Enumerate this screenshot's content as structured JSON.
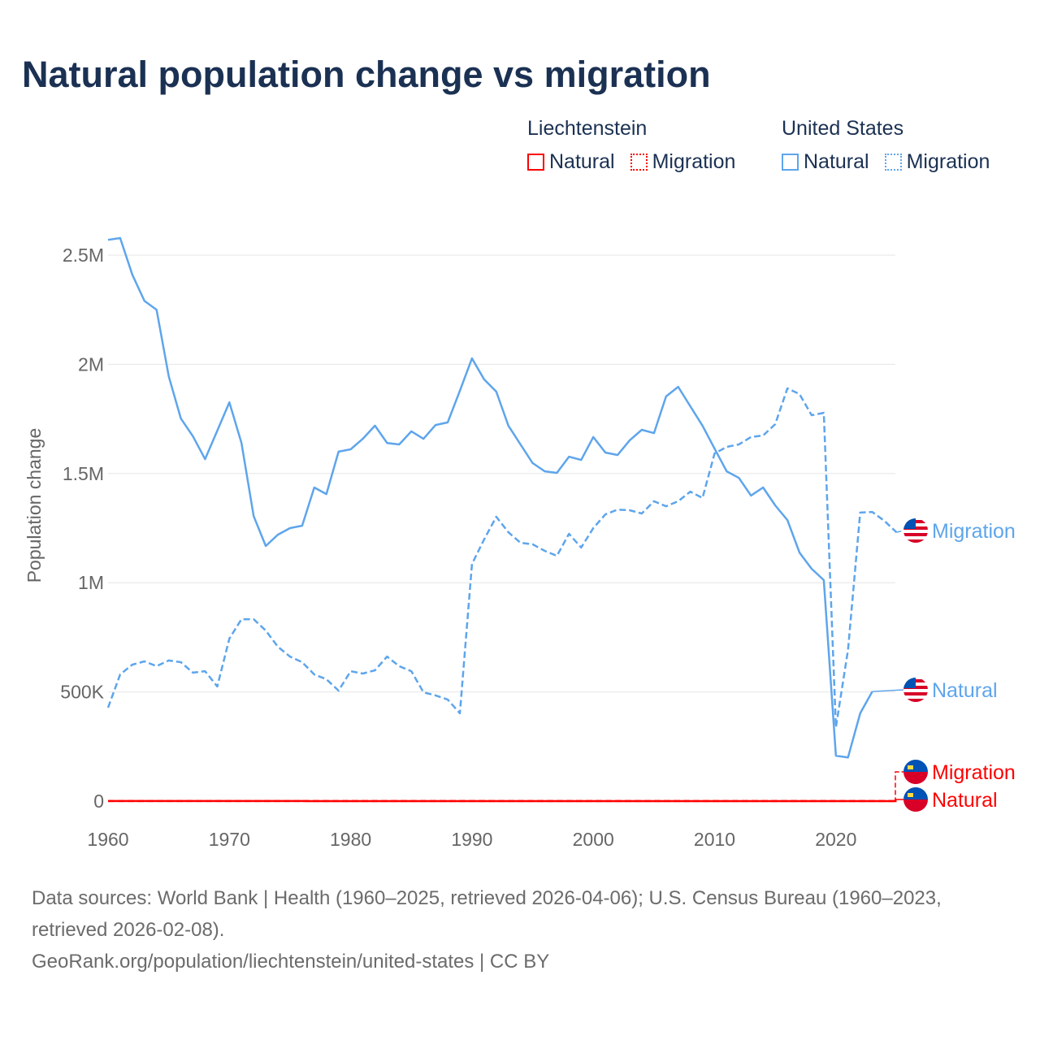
{
  "chart_data": {
    "type": "line",
    "title": "Natural population change vs migration",
    "xlabel": "",
    "ylabel": "Population change",
    "xlim": [
      1960,
      2025
    ],
    "ylim": [
      0,
      2500000
    ],
    "x_ticks": [
      "1960",
      "1970",
      "1980",
      "1990",
      "2000",
      "2010",
      "2020"
    ],
    "y_ticks": [
      {
        "value": 0,
        "label": "0"
      },
      {
        "value": 500000,
        "label": "500K"
      },
      {
        "value": 1000000,
        "label": "1M"
      },
      {
        "value": 1500000,
        "label": "1.5M"
      },
      {
        "value": 2000000,
        "label": "2M"
      },
      {
        "value": 2500000,
        "label": "2.5M"
      }
    ],
    "grid": true,
    "legend": {
      "placement": "top-right",
      "groups": [
        {
          "country": "Liechtenstein",
          "items": [
            "Natural",
            "Migration"
          ],
          "color": "#ff0000"
        },
        {
          "country": "United States",
          "items": [
            "Natural",
            "Migration"
          ],
          "color": "#5ea5ec"
        }
      ]
    },
    "series": [
      {
        "name": "United States Natural",
        "label": "Natural",
        "country": "United States",
        "color": "#5ea5ec",
        "dash": false,
        "start_year": 1960,
        "values": [
          2570000,
          2578000,
          2410000,
          2290000,
          2250000,
          1945000,
          1752000,
          1670000,
          1566000,
          1696000,
          1826000,
          1640000,
          1305000,
          1168000,
          1220000,
          1250000,
          1261000,
          1436000,
          1406000,
          1600000,
          1611000,
          1659000,
          1719000,
          1640000,
          1633000,
          1693000,
          1659000,
          1722000,
          1734000,
          1879000,
          2027000,
          1931000,
          1875000,
          1719000,
          1633000,
          1548000,
          1510000,
          1503000,
          1577000,
          1562000,
          1667000,
          1596000,
          1585000,
          1652000,
          1700000,
          1685000,
          1853000,
          1897000,
          1808000,
          1719000,
          1614000,
          1510000,
          1480000,
          1399000,
          1436000,
          1354000,
          1287000,
          1138000,
          1064000,
          1012000,
          208000,
          200000,
          402000,
          502000
        ]
      },
      {
        "name": "United States Migration",
        "label": "Migration",
        "country": "United States",
        "color": "#5ea5ec",
        "dash": true,
        "start_year": 1960,
        "values": [
          428000,
          580000,
          625000,
          640000,
          618000,
          644000,
          636000,
          588000,
          595000,
          525000,
          744000,
          833000,
          833000,
          781000,
          707000,
          662000,
          636000,
          580000,
          558000,
          506000,
          595000,
          584000,
          599000,
          662000,
          618000,
          595000,
          498000,
          484000,
          465000,
          402000,
          1086000,
          1198000,
          1302000,
          1231000,
          1183000,
          1176000,
          1146000,
          1123000,
          1224000,
          1161000,
          1250000,
          1313000,
          1335000,
          1332000,
          1317000,
          1373000,
          1350000,
          1373000,
          1417000,
          1388000,
          1592000,
          1622000,
          1633000,
          1667000,
          1674000,
          1726000,
          1890000,
          1864000,
          1767000,
          1778000,
          338000,
          692000,
          1321000,
          1324000,
          1283000,
          1231000
        ]
      },
      {
        "name": "Liechtenstein Natural",
        "label": "Natural",
        "country": "Liechtenstein",
        "color": "#ff0000",
        "dash": false,
        "start_year": 1960,
        "values": [
          300,
          300,
          300,
          300,
          300,
          300,
          300,
          300,
          300,
          300,
          250,
          250,
          250,
          200,
          200,
          200,
          200,
          150,
          150,
          150,
          150,
          150,
          150,
          150,
          150,
          150,
          150,
          150,
          150,
          150,
          150,
          150,
          150,
          150,
          150,
          150,
          150,
          150,
          150,
          150,
          100,
          100,
          100,
          100,
          100,
          100,
          100,
          100,
          100,
          100,
          100,
          100,
          100,
          100,
          100,
          100,
          100,
          100,
          100,
          100,
          50,
          50,
          50,
          50,
          50,
          50
        ]
      },
      {
        "name": "Liechtenstein Migration",
        "label": "Migration",
        "country": "Liechtenstein",
        "color": "#ff0000",
        "dash": true,
        "start_year": 1960,
        "values": [
          300,
          300,
          300,
          300,
          300,
          300,
          300,
          300,
          300,
          300,
          300,
          300,
          300,
          300,
          300,
          300,
          300,
          300,
          300,
          300,
          300,
          300,
          300,
          300,
          300,
          300,
          300,
          300,
          300,
          300,
          300,
          300,
          300,
          300,
          300,
          300,
          300,
          300,
          300,
          300,
          300,
          300,
          300,
          300,
          300,
          300,
          300,
          300,
          300,
          300,
          300,
          300,
          300,
          300,
          300,
          300,
          300,
          300,
          300,
          300,
          300,
          300,
          300,
          300,
          300,
          300
        ]
      }
    ]
  },
  "footer": {
    "sources": "Data sources: World Bank | Health (1960–2025, retrieved 2026-04-06); U.S. Census Bureau (1960–2023, retrieved 2026-02-08).",
    "credit": "GeoRank.org/population/liechtenstein/united-states | CC BY"
  }
}
